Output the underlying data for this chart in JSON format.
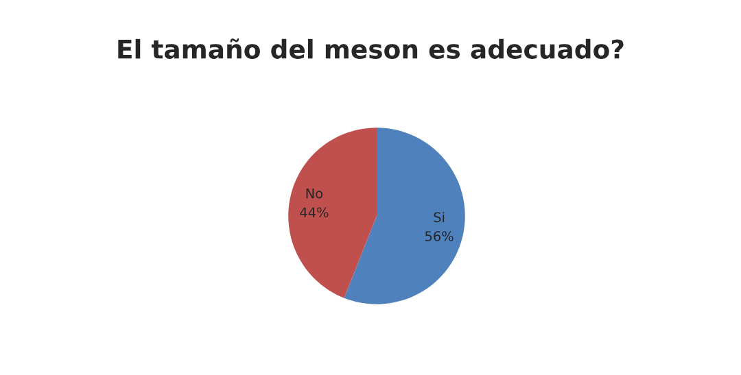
{
  "chart_data": {
    "type": "pie",
    "title": "El tamaño del meson es adecuado?",
    "categories": [
      "Si",
      "No"
    ],
    "values": [
      56,
      44
    ],
    "colors": [
      "#4f81bd",
      "#c0504d"
    ],
    "value_labels": [
      "56%",
      "44%"
    ],
    "legend": false
  }
}
